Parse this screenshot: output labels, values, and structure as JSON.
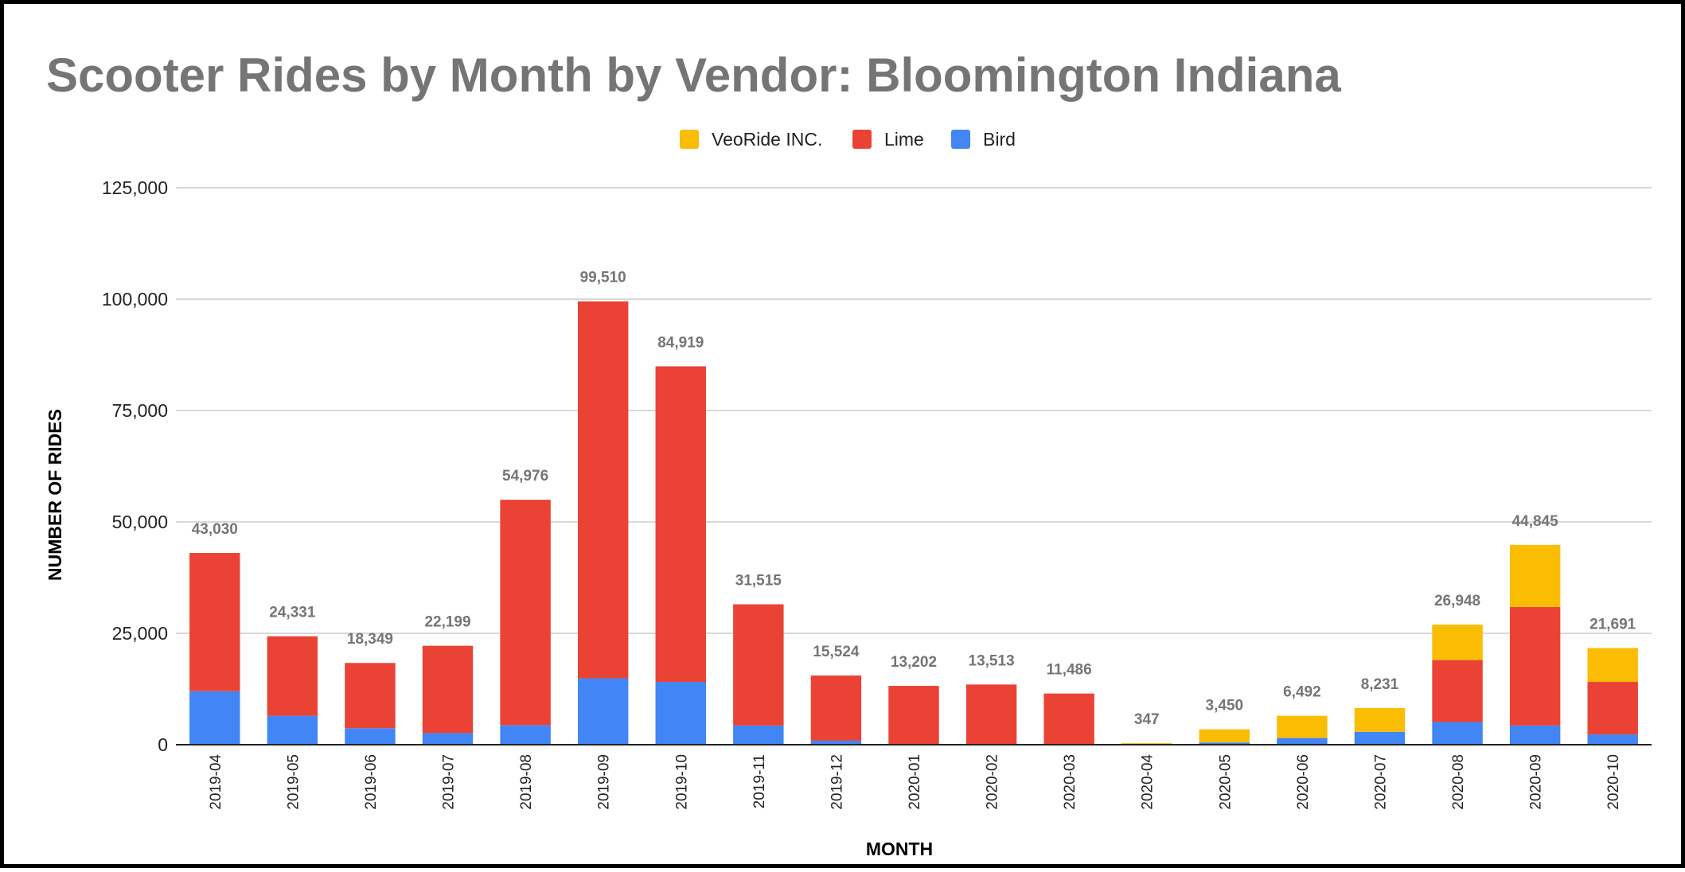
{
  "chart_data": {
    "type": "bar",
    "stacked": true,
    "title": "Scooter Rides by Month by Vendor: Bloomington Indiana",
    "xlabel": "MONTH",
    "ylabel": "NUMBER OF RIDES",
    "ylim": [
      0,
      125000
    ],
    "yticks": [
      0,
      25000,
      50000,
      75000,
      100000,
      125000
    ],
    "ytick_labels": [
      "0",
      "25,000",
      "50,000",
      "75,000",
      "100,000",
      "125,000"
    ],
    "grid": true,
    "legend_position": "top-center",
    "categories": [
      "2019-04",
      "2019-05",
      "2019-06",
      "2019-07",
      "2019-08",
      "2019-09",
      "2019-10",
      "2019-11",
      "2019-12",
      "2020-01",
      "2020-02",
      "2020-03",
      "2020-04",
      "2020-05",
      "2020-06",
      "2020-07",
      "2020-08",
      "2020-09",
      "2020-10"
    ],
    "series": [
      {
        "name": "Bird",
        "color": "#4285F4",
        "values": [
          12000,
          6500,
          3700,
          2600,
          4400,
          14900,
          14100,
          4300,
          900,
          0,
          0,
          0,
          0,
          500,
          1500,
          2900,
          5100,
          4300,
          2300
        ]
      },
      {
        "name": "Lime",
        "color": "#EA4335",
        "values": [
          31030,
          17831,
          14649,
          19599,
          50576,
          84610,
          70819,
          27215,
          14624,
          13202,
          13513,
          11486,
          0,
          0,
          0,
          0,
          13900,
          26600,
          11800
        ]
      },
      {
        "name": "VeoRide INC.",
        "color": "#FBBC04",
        "values": [
          0,
          0,
          0,
          0,
          0,
          0,
          0,
          0,
          0,
          0,
          0,
          0,
          347,
          2950,
          4992,
          5331,
          7948,
          13945,
          7591
        ]
      }
    ],
    "legend_order": [
      "VeoRide INC.",
      "Lime",
      "Bird"
    ],
    "totals": [
      43030,
      24331,
      18349,
      22199,
      54976,
      99510,
      84919,
      31515,
      15524,
      13202,
      13513,
      11486,
      347,
      3450,
      6492,
      8231,
      26948,
      44845,
      21691
    ],
    "total_labels": [
      "43,030",
      "24,331",
      "18,349",
      "22,199",
      "54,976",
      "99,510",
      "84,919",
      "31,515",
      "15,524",
      "13,202",
      "13,513",
      "11,486",
      "347",
      "3,450",
      "6,492",
      "8,231",
      "26,948",
      "44,845",
      "21,691"
    ]
  }
}
